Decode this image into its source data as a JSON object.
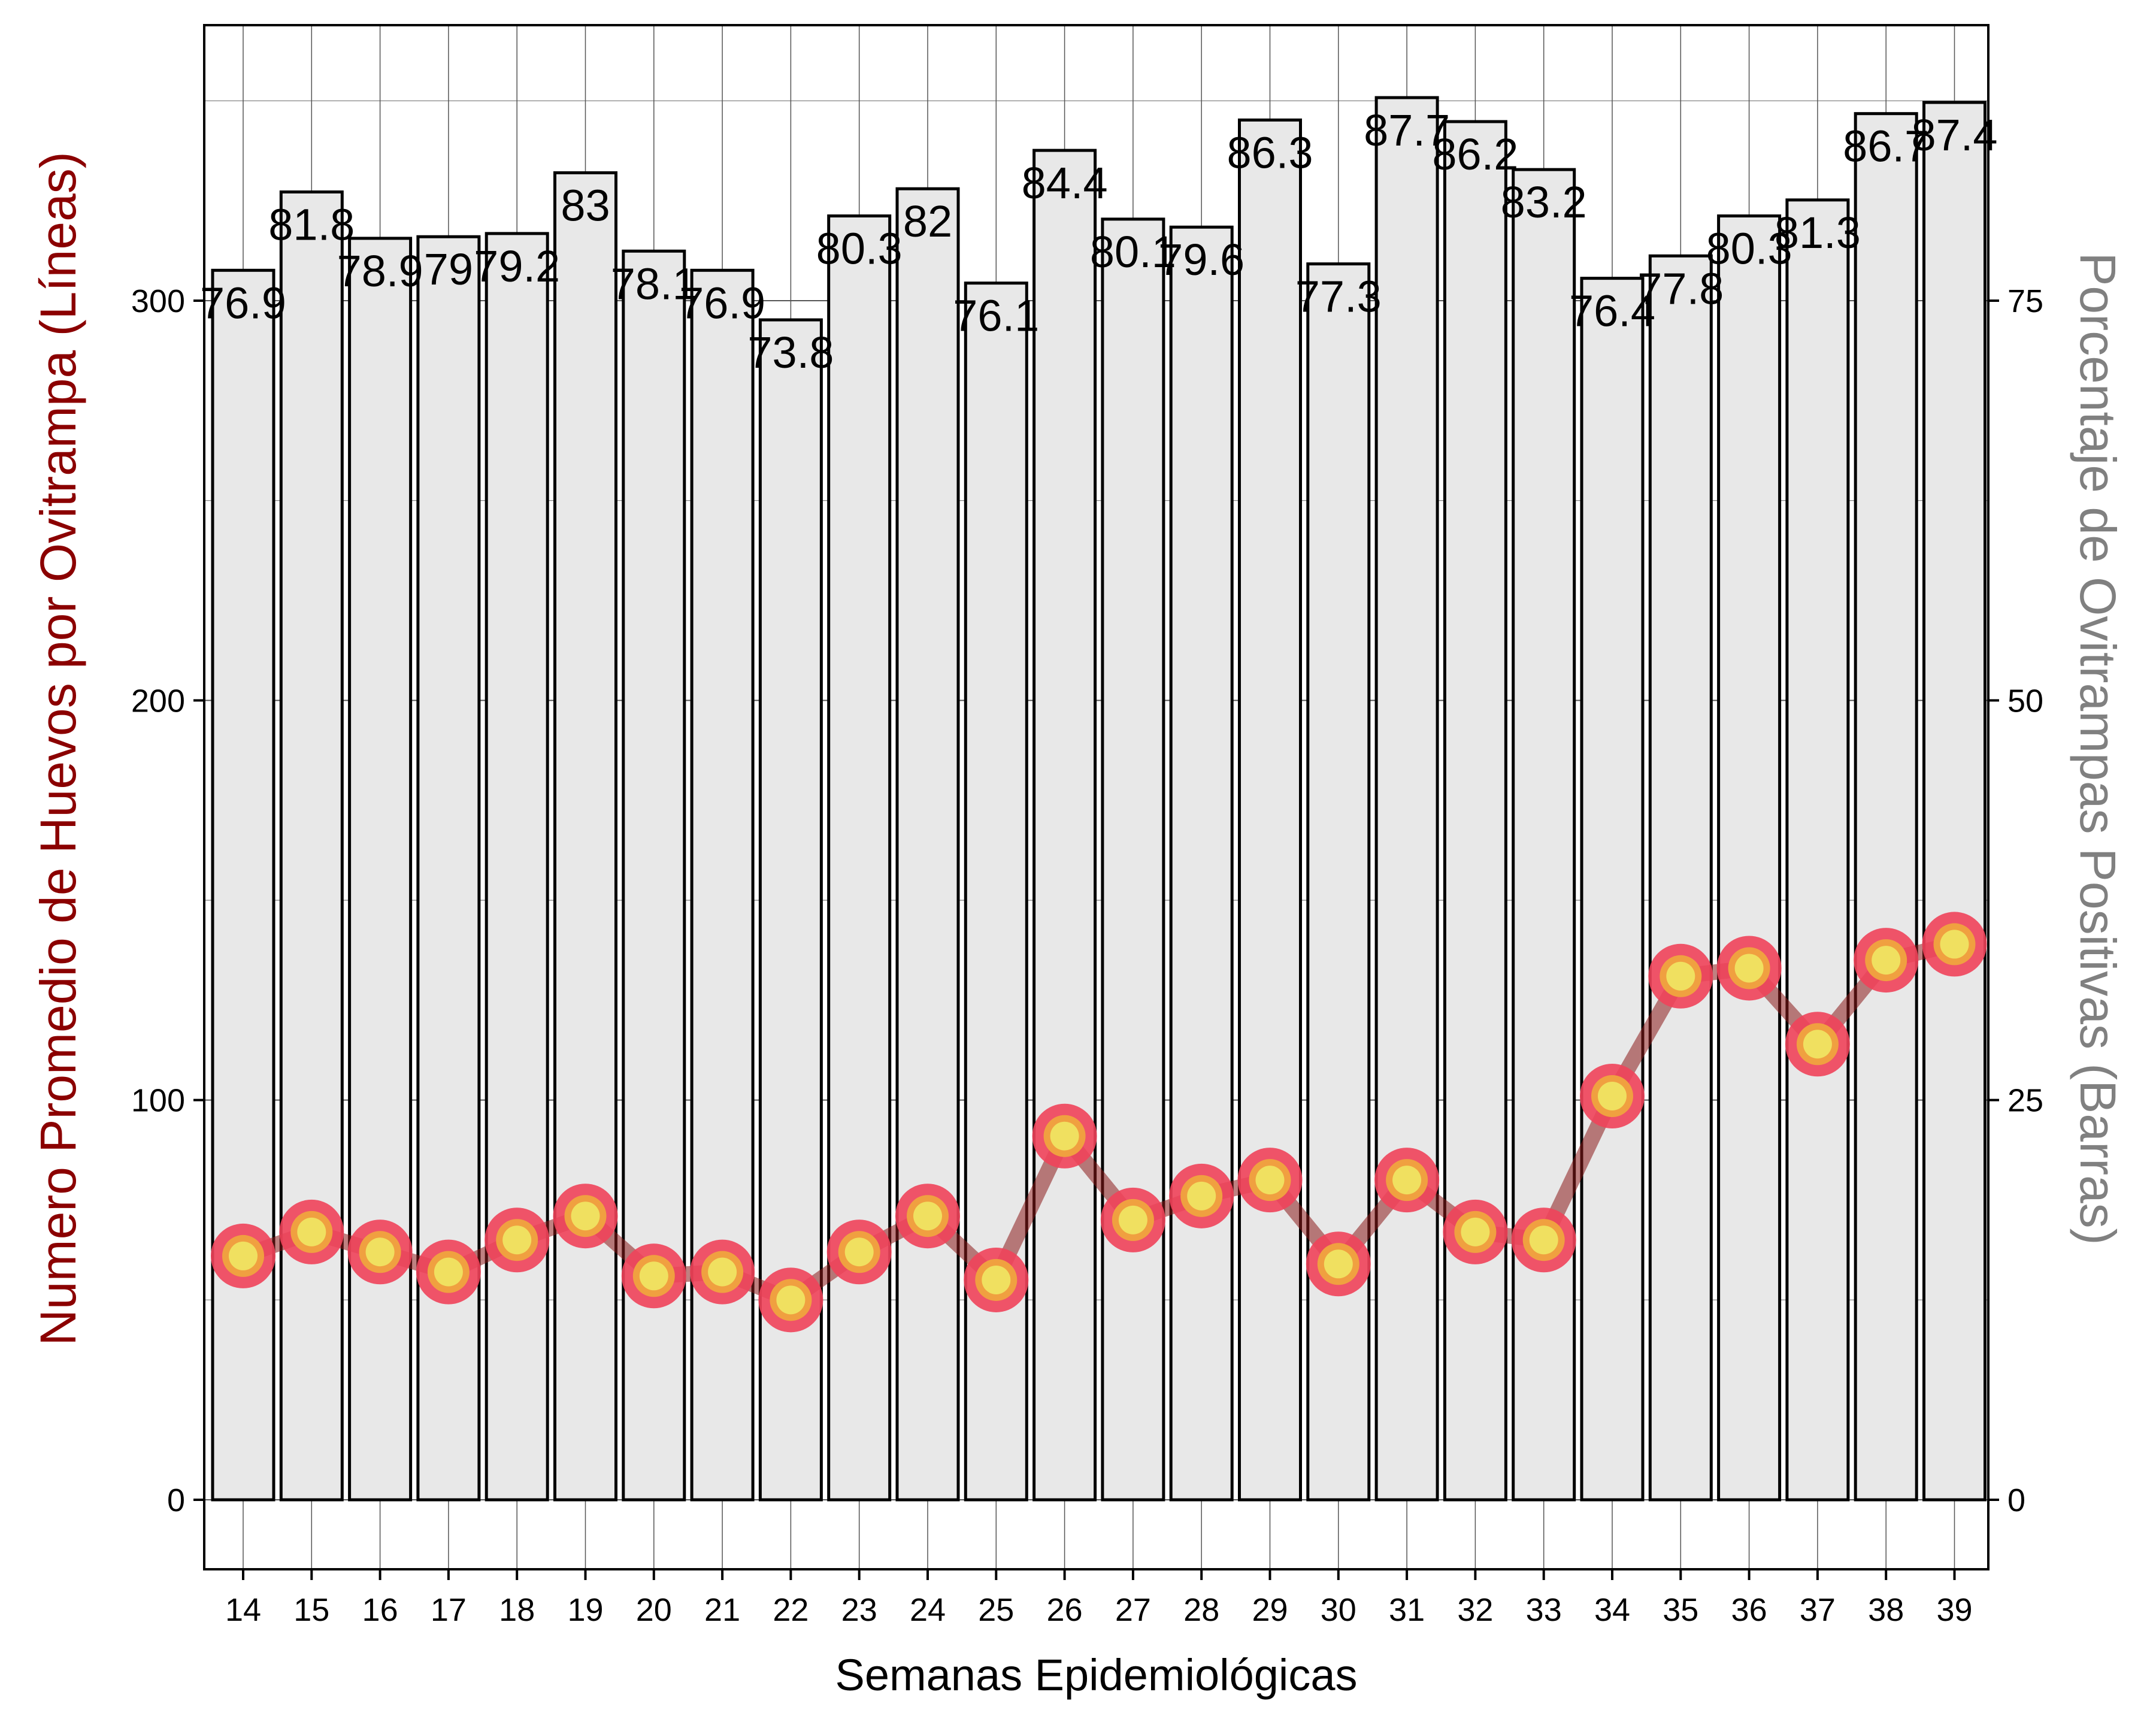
{
  "chart_data": {
    "type": "bar",
    "categories": [
      "14",
      "15",
      "16",
      "17",
      "18",
      "19",
      "20",
      "21",
      "22",
      "23",
      "24",
      "25",
      "26",
      "27",
      "28",
      "29",
      "30",
      "31",
      "32",
      "33",
      "34",
      "35",
      "36",
      "37",
      "38",
      "39"
    ],
    "bar_series": {
      "axis": "right",
      "values": [
        76.9,
        81.8,
        78.9,
        79,
        79.2,
        83,
        78.1,
        76.9,
        73.8,
        80.3,
        82,
        76.1,
        84.4,
        80.1,
        79.6,
        86.3,
        77.3,
        87.7,
        86.2,
        83.2,
        76.4,
        77.8,
        80.3,
        81.3,
        86.7,
        87.4
      ],
      "labels": [
        "76.9",
        "81.8",
        "78.9",
        "79",
        "79.2",
        "83",
        "78.1",
        "76.9",
        "73.8",
        "80.3",
        "82",
        "76.1",
        "84.4",
        "80.1",
        "79.6",
        "86.3",
        "77.3",
        "87.7",
        "86.2",
        "83.2",
        "76.4",
        "77.8",
        "80.3",
        "81.3",
        "86.7",
        "87.4"
      ],
      "fill": "#e8e8e8",
      "stroke": "#000000"
    },
    "line_series": {
      "axis": "left",
      "values": [
        61,
        67,
        62,
        57,
        65,
        71,
        56,
        57,
        50,
        62,
        71,
        55,
        91,
        70,
        76,
        80,
        59,
        80,
        67,
        65,
        101,
        131,
        133,
        114,
        135,
        139
      ],
      "line_color": "#8b1a1a",
      "marker_outer_color": "#f0435a",
      "marker_mid_color": "#f0a040",
      "marker_inner_color": "#f0e060"
    },
    "xlabel": "Semanas Epidemiológicas",
    "ylabel_left": "Numero Promedio de Huevos por Ovitrampa (Líneas)",
    "ylabel_right": "Porcentaje de Ovitrampas Positivas (Barras)",
    "ylim_left": [
      -17,
      375
    ],
    "ylim_right": [
      -4.25,
      93.75
    ],
    "yticks_left": [
      "0",
      "100",
      "200",
      "300"
    ],
    "yticks_right": [
      "0",
      "25",
      "50",
      "75"
    ],
    "left_title_color": "#8b0000",
    "right_title_color": "#808080",
    "grid": true
  }
}
